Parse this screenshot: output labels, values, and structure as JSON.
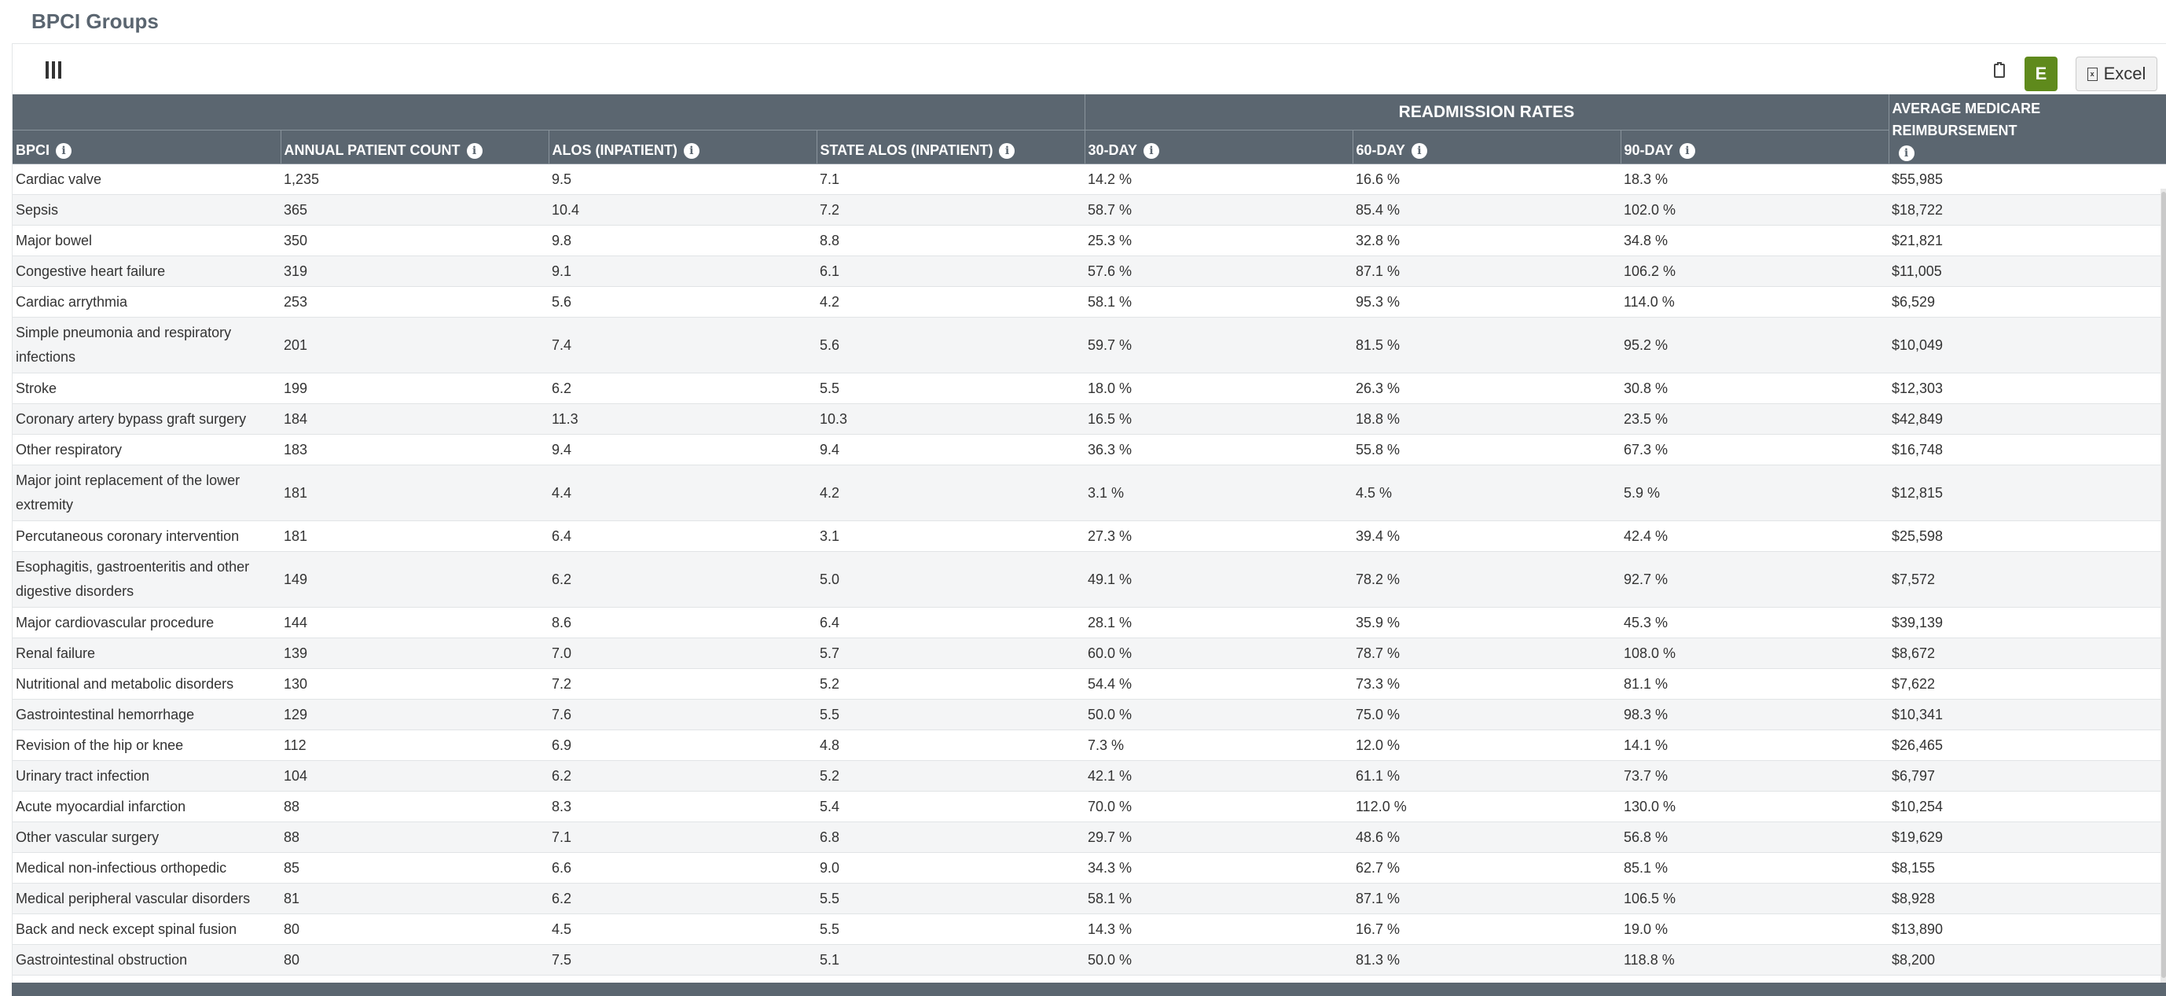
{
  "page": {
    "title": "BPCI Groups"
  },
  "toolbar": {
    "e_label": "E",
    "excel_label": "Excel",
    "excel_icon": "excel-file-icon"
  },
  "table": {
    "group_header": "READMISSION RATES",
    "headers": {
      "bpci": "BPCI",
      "annual": "ANNUAL PATIENT COUNT",
      "alos": "ALOS (INPATIENT)",
      "state_alos": "STATE ALOS (INPATIENT)",
      "d30": "30-DAY",
      "d60": "60-DAY",
      "d90": "90-DAY",
      "avg": "AVERAGE MEDICARE REIMBURSEMENT"
    },
    "rows": [
      [
        "Cardiac valve",
        "1,235",
        "9.5",
        "7.1",
        "14.2 %",
        "16.6 %",
        "18.3 %",
        "$55,985"
      ],
      [
        "Sepsis",
        "365",
        "10.4",
        "7.2",
        "58.7 %",
        "85.4 %",
        "102.0 %",
        "$18,722"
      ],
      [
        "Major bowel",
        "350",
        "9.8",
        "8.8",
        "25.3 %",
        "32.8 %",
        "34.8 %",
        "$21,821"
      ],
      [
        "Congestive heart failure",
        "319",
        "9.1",
        "6.1",
        "57.6 %",
        "87.1 %",
        "106.2 %",
        "$11,005"
      ],
      [
        "Cardiac arrythmia",
        "253",
        "5.6",
        "4.2",
        "58.1 %",
        "95.3 %",
        "114.0 %",
        "$6,529"
      ],
      [
        "Simple pneumonia and respiratory infections",
        "201",
        "7.4",
        "5.6",
        "59.7 %",
        "81.5 %",
        "95.2 %",
        "$10,049"
      ],
      [
        "Stroke",
        "199",
        "6.2",
        "5.5",
        "18.0 %",
        "26.3 %",
        "30.8 %",
        "$12,303"
      ],
      [
        "Coronary artery bypass graft surgery",
        "184",
        "11.3",
        "10.3",
        "16.5 %",
        "18.8 %",
        "23.5 %",
        "$42,849"
      ],
      [
        "Other respiratory",
        "183",
        "9.4",
        "9.4",
        "36.3 %",
        "55.8 %",
        "67.3 %",
        "$16,748"
      ],
      [
        "Major joint replacement of the lower extremity",
        "181",
        "4.4",
        "4.2",
        "3.1 %",
        "4.5 %",
        "5.9 %",
        "$12,815"
      ],
      [
        "Percutaneous coronary intervention",
        "181",
        "6.4",
        "3.1",
        "27.3 %",
        "39.4 %",
        "42.4 %",
        "$25,598"
      ],
      [
        "Esophagitis, gastroenteritis and other digestive disorders",
        "149",
        "6.2",
        "5.0",
        "49.1 %",
        "78.2 %",
        "92.7 %",
        "$7,572"
      ],
      [
        "Major cardiovascular procedure",
        "144",
        "8.6",
        "6.4",
        "28.1 %",
        "35.9 %",
        "45.3 %",
        "$39,139"
      ],
      [
        "Renal failure",
        "139",
        "7.0",
        "5.7",
        "60.0 %",
        "78.7 %",
        "108.0 %",
        "$8,672"
      ],
      [
        "Nutritional and metabolic disorders",
        "130",
        "7.2",
        "5.2",
        "54.4 %",
        "73.3 %",
        "81.1 %",
        "$7,622"
      ],
      [
        "Gastrointestinal hemorrhage",
        "129",
        "7.6",
        "5.5",
        "50.0 %",
        "75.0 %",
        "98.3 %",
        "$10,341"
      ],
      [
        "Revision of the hip or knee",
        "112",
        "6.9",
        "4.8",
        "7.3 %",
        "12.0 %",
        "14.1 %",
        "$26,465"
      ],
      [
        "Urinary tract infection",
        "104",
        "6.2",
        "5.2",
        "42.1 %",
        "61.1 %",
        "73.7 %",
        "$6,797"
      ],
      [
        "Acute myocardial infarction",
        "88",
        "8.3",
        "5.4",
        "70.0 %",
        "112.0 %",
        "130.0 %",
        "$10,254"
      ],
      [
        "Other vascular surgery",
        "88",
        "7.1",
        "6.8",
        "29.7 %",
        "48.6 %",
        "56.8 %",
        "$19,629"
      ],
      [
        "Medical non-infectious orthopedic",
        "85",
        "6.6",
        "9.0",
        "34.3 %",
        "62.7 %",
        "85.1 %",
        "$8,155"
      ],
      [
        "Medical peripheral vascular disorders",
        "81",
        "6.2",
        "5.5",
        "58.1 %",
        "87.1 %",
        "106.5 %",
        "$8,928"
      ],
      [
        "Back and neck except spinal fusion",
        "80",
        "4.5",
        "5.5",
        "14.3 %",
        "16.7 %",
        "19.0 %",
        "$13,890"
      ],
      [
        "Gastrointestinal obstruction",
        "80",
        "7.5",
        "5.1",
        "50.0 %",
        "81.3 %",
        "118.8 %",
        "$8,200"
      ]
    ]
  }
}
